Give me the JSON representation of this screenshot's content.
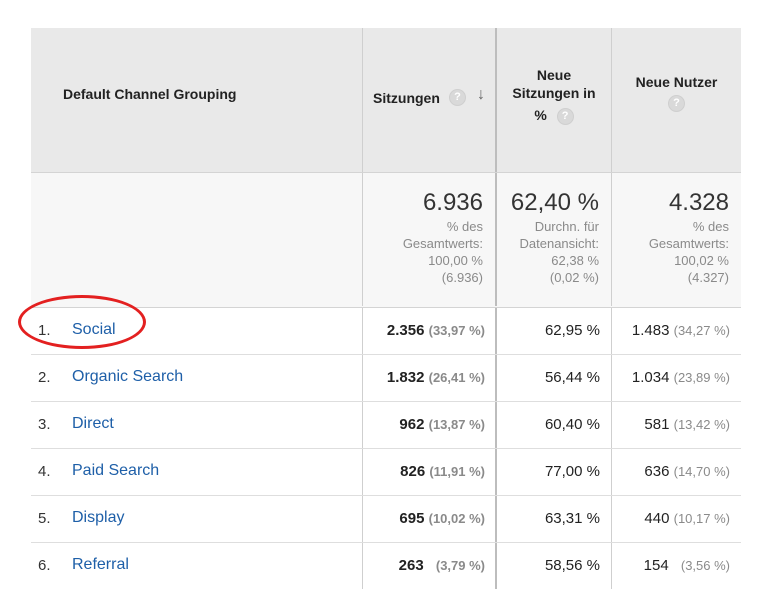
{
  "header": {
    "col1": "Default Channel Grouping",
    "col2": "Sitzungen",
    "col3_lines": [
      "Neue",
      "Sitzungen in",
      "%"
    ],
    "col4": "Neue Nutzer",
    "help_glyph": "?",
    "sort_glyph": "↓"
  },
  "totals": {
    "sessions": {
      "value": "6.936",
      "lines": [
        "% des",
        "Gesamtwerts:",
        "100,00 %",
        "(6.936)"
      ]
    },
    "new_sessions_pct": {
      "value": "62,40 %",
      "lines": [
        "Durchn. für",
        "Datenansicht:",
        "62,38 %",
        "(0,02 %)"
      ]
    },
    "new_users": {
      "value": "4.328",
      "lines": [
        "% des",
        "Gesamtwerts:",
        "100,02 %",
        "(4.327)"
      ]
    }
  },
  "rows": [
    {
      "rank": "1.",
      "channel": "Social",
      "sessions": "2.356",
      "sessions_pct": "(33,97 %)",
      "new_sessions_pct": "62,95 %",
      "new_users": "1.483",
      "new_users_pct": "(34,27 %)"
    },
    {
      "rank": "2.",
      "channel": "Organic Search",
      "sessions": "1.832",
      "sessions_pct": "(26,41 %)",
      "new_sessions_pct": "56,44 %",
      "new_users": "1.034",
      "new_users_pct": "(23,89 %)"
    },
    {
      "rank": "3.",
      "channel": "Direct",
      "sessions": "962",
      "sessions_pct": "(13,87 %)",
      "new_sessions_pct": "60,40 %",
      "new_users": "581",
      "new_users_pct": "(13,42 %)"
    },
    {
      "rank": "4.",
      "channel": "Paid Search",
      "sessions": "826",
      "sessions_pct": "(11,91 %)",
      "new_sessions_pct": "77,00 %",
      "new_users": "636",
      "new_users_pct": "(14,70 %)"
    },
    {
      "rank": "5.",
      "channel": "Display",
      "sessions": "695",
      "sessions_pct": "(10,02 %)",
      "new_sessions_pct": "63,31 %",
      "new_users": "440",
      "new_users_pct": "(10,17 %)"
    },
    {
      "rank": "6.",
      "channel": "Referral",
      "sessions": "263",
      "sessions_pct": "(3,79 %)",
      "new_sessions_pct": "58,56 %",
      "new_users": "154",
      "new_users_pct": "(3,56 %)"
    }
  ],
  "colors": {
    "link": "#1e5fa8",
    "header_bg": "#e9e9e9",
    "highlight_circle": "#e32020"
  }
}
